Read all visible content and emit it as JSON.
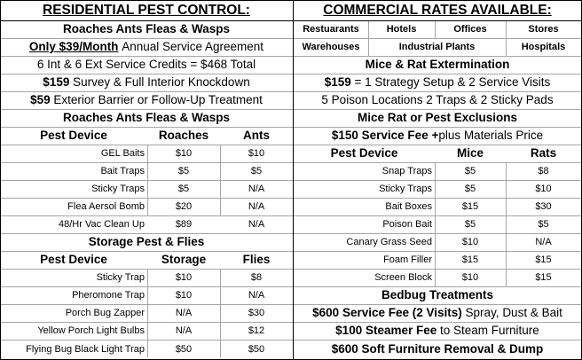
{
  "left": {
    "header": "RESIDENTIAL PEST CONTROL:",
    "roaches_title": "Roaches Ants Fleas & Wasps",
    "monthly_price": "Only $39/Month",
    "monthly_desc": "Annual Service Agreement",
    "credits": "6 Int & 6 Ext Service Credits = $468 Total",
    "survey_price": "$159",
    "survey_desc": "Survey & Full Interior Knockdown",
    "barrier_price": "$59",
    "barrier_desc": "Exterior Barrier or Follow-Up Treatment",
    "table1_title": "Roaches Ants Fleas & Wasps",
    "table1_headers": [
      "Pest Device",
      "Roaches",
      "Ants"
    ],
    "table1_rows": [
      [
        "GEL Baits",
        "$10",
        "$10"
      ],
      [
        "Bait Traps",
        "$5",
        "$5"
      ],
      [
        "Sticky Traps",
        "$5",
        "N/A"
      ],
      [
        "Flea Aersol Bomb",
        "$20",
        "N/A"
      ],
      [
        "48/Hr Vac Clean Up",
        "$89",
        "N/A"
      ]
    ],
    "table2_title": "Storage Pest & Flies",
    "table2_headers": [
      "Pest Device",
      "Storage",
      "Flies"
    ],
    "table2_rows": [
      [
        "Sticky Trap",
        "$10",
        "$8"
      ],
      [
        "Pheromone Trap",
        "$10",
        "N/A"
      ],
      [
        "Porch Bug Zapper",
        "N/A",
        "$30"
      ],
      [
        "Yellow Porch Light Bulbs",
        "N/A",
        "$12"
      ],
      [
        "Flying Bug Black Light Trap",
        "$50",
        "$50"
      ]
    ]
  },
  "right": {
    "header": "COMMERCIAL RATES AVAILABLE:",
    "types_row1": [
      "Restuarants",
      "Hotels",
      "Offices",
      "Stores"
    ],
    "types_row2": [
      "Warehouses",
      "Industrial Plants",
      "Hospitals"
    ],
    "mice_title": "Mice & Rat Extermination",
    "mice_price": "$159",
    "mice_desc": "= 1 Strategy Setup & 2 Service Visits",
    "poison_desc": "5 Poison Locations 2 Traps & 2 Sticky Pads",
    "exclusion_title": "Mice Rat or Pest Exclusions",
    "exclusion_fee": "$150 Service Fee +",
    "exclusion_desc": "plus Materials Price",
    "table_headers": [
      "Pest Device",
      "Mice",
      "Rats"
    ],
    "table_rows": [
      [
        "Snap Traps",
        "$5",
        "$8"
      ],
      [
        "Sticky Traps",
        "$5",
        "$10"
      ],
      [
        "Bait Boxes",
        "$15",
        "$30"
      ],
      [
        "Poison Bait",
        "$5",
        "$5"
      ],
      [
        "Canary Grass Seed",
        "$10",
        "N/A"
      ],
      [
        "Foam Filler",
        "$15",
        "$15"
      ],
      [
        "Screen Block",
        "$10",
        "$15"
      ]
    ],
    "bedbug_title": "Bedbug Treatments",
    "bedbug1_price": "$600 Service Fee (2 Visits)",
    "bedbug1_desc": "Spray, Dust & Bait",
    "bedbug2_price": "$100 Steamer Fee",
    "bedbug2_desc": "to Steam Furniture",
    "bedbug3": "$600 Soft Furniture Removal & Dump"
  }
}
